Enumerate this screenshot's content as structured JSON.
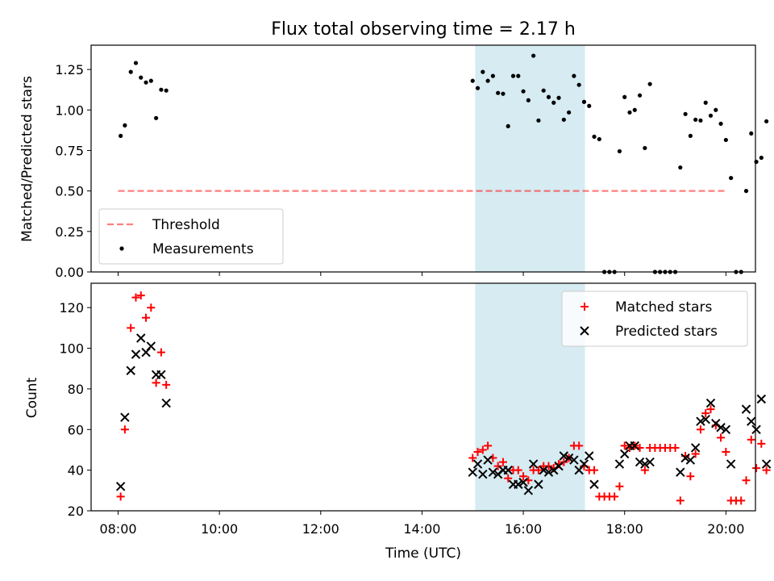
{
  "chart_data": [
    {
      "type": "scatter",
      "title": "Flux total observing time = 2.17 h",
      "xlabel": "",
      "ylabel": "Matched/Predicted stars",
      "xlim": [
        "07:28",
        "20:35"
      ],
      "ylim": [
        0,
        1.4
      ],
      "yticks": [
        "0.00",
        "0.25",
        "0.50",
        "0.75",
        "1.00",
        "1.25"
      ],
      "highlight_span": [
        "15:03",
        "17:13"
      ],
      "highlight_color": "#add8e6",
      "legend_position": "lower left",
      "threshold": {
        "name": "Threshold",
        "value": 0.5,
        "x_range": [
          "08:00",
          "20:00"
        ],
        "color": "#ff0000",
        "style": "dashed"
      },
      "series": [
        {
          "name": "Measurements",
          "color": "#000000",
          "marker": "dot",
          "points": [
            [
              "08:03",
              0.84
            ],
            [
              "08:08",
              0.905
            ],
            [
              "08:15",
              1.235
            ],
            [
              "08:21",
              1.29
            ],
            [
              "08:27",
              1.2
            ],
            [
              "08:33",
              1.17
            ],
            [
              "08:39",
              1.18
            ],
            [
              "08:45",
              0.95
            ],
            [
              "08:51",
              1.125
            ],
            [
              "08:57",
              1.12
            ],
            [
              "15:00",
              1.18
            ],
            [
              "15:06",
              1.135
            ],
            [
              "15:12",
              1.235
            ],
            [
              "15:18",
              1.18
            ],
            [
              "15:24",
              1.21
            ],
            [
              "15:30",
              1.105
            ],
            [
              "15:36",
              1.1
            ],
            [
              "15:42",
              0.9
            ],
            [
              "15:48",
              1.21
            ],
            [
              "15:54",
              1.21
            ],
            [
              "16:00",
              1.115
            ],
            [
              "16:06",
              1.06
            ],
            [
              "16:12",
              1.335
            ],
            [
              "16:18",
              0.935
            ],
            [
              "16:24",
              1.12
            ],
            [
              "16:30",
              1.08
            ],
            [
              "16:36",
              1.045
            ],
            [
              "16:42",
              1.075
            ],
            [
              "16:48",
              0.94
            ],
            [
              "16:54",
              0.985
            ],
            [
              "17:00",
              1.21
            ],
            [
              "17:06",
              1.155
            ],
            [
              "17:12",
              1.05
            ],
            [
              "17:18",
              1.025
            ],
            [
              "17:24",
              0.835
            ],
            [
              "17:30",
              0.82
            ],
            [
              "17:36",
              0.0
            ],
            [
              "17:42",
              0.0
            ],
            [
              "17:48",
              0.0
            ],
            [
              "17:54",
              0.745
            ],
            [
              "18:00",
              1.08
            ],
            [
              "18:06",
              0.985
            ],
            [
              "18:12",
              1.0
            ],
            [
              "18:18",
              1.09
            ],
            [
              "18:24",
              0.765
            ],
            [
              "18:30",
              1.16
            ],
            [
              "18:36",
              0.0
            ],
            [
              "18:42",
              0.0
            ],
            [
              "18:48",
              0.0
            ],
            [
              "18:54",
              0.0
            ],
            [
              "19:00",
              0.0
            ],
            [
              "19:06",
              0.645
            ],
            [
              "19:12",
              0.975
            ],
            [
              "19:18",
              0.84
            ],
            [
              "19:24",
              0.94
            ],
            [
              "19:30",
              0.935
            ],
            [
              "19:36",
              1.045
            ],
            [
              "19:42",
              0.965
            ],
            [
              "19:48",
              1.0
            ],
            [
              "19:54",
              0.915
            ],
            [
              "20:00",
              0.815
            ],
            [
              "20:06",
              0.58
            ],
            [
              "20:12",
              0.0
            ],
            [
              "20:18",
              0.0
            ],
            [
              "20:24",
              0.5
            ],
            [
              "20:30",
              0.855
            ],
            [
              "20:36",
              0.68
            ],
            [
              "20:42",
              0.705
            ],
            [
              "20:48",
              0.93
            ]
          ]
        }
      ]
    },
    {
      "type": "scatter",
      "title": "",
      "xlabel": "Time (UTC)",
      "ylabel": "Count",
      "xlim": [
        "07:28",
        "20:35"
      ],
      "ylim": [
        20,
        132
      ],
      "yticks": [
        "20",
        "40",
        "60",
        "80",
        "100",
        "120"
      ],
      "xticks": [
        "08:00",
        "10:00",
        "12:00",
        "14:00",
        "16:00",
        "18:00",
        "20:00"
      ],
      "highlight_span": [
        "15:03",
        "17:13"
      ],
      "highlight_color": "#add8e6",
      "legend_position": "upper right",
      "series": [
        {
          "name": "Matched stars",
          "color": "#ff0000",
          "marker": "plus",
          "points": [
            [
              "08:03",
              27
            ],
            [
              "08:08",
              60
            ],
            [
              "08:15",
              110
            ],
            [
              "08:21",
              125
            ],
            [
              "08:27",
              126
            ],
            [
              "08:33",
              115
            ],
            [
              "08:39",
              120
            ],
            [
              "08:45",
              83
            ],
            [
              "08:51",
              98
            ],
            [
              "08:57",
              82
            ],
            [
              "15:00",
              46
            ],
            [
              "15:06",
              49
            ],
            [
              "15:12",
              50
            ],
            [
              "15:18",
              52
            ],
            [
              "15:24",
              46
            ],
            [
              "15:30",
              42
            ],
            [
              "15:36",
              44
            ],
            [
              "15:42",
              36
            ],
            [
              "15:48",
              40
            ],
            [
              "15:54",
              40
            ],
            [
              "16:00",
              37
            ],
            [
              "16:06",
              35
            ],
            [
              "16:12",
              40
            ],
            [
              "16:18",
              40
            ],
            [
              "16:24",
              42
            ],
            [
              "16:30",
              42
            ],
            [
              "16:36",
              41
            ],
            [
              "16:42",
              43
            ],
            [
              "16:48",
              44
            ],
            [
              "16:54",
              46
            ],
            [
              "17:00",
              52
            ],
            [
              "17:06",
              52
            ],
            [
              "17:12",
              42
            ],
            [
              "17:18",
              40
            ],
            [
              "17:24",
              40
            ],
            [
              "17:30",
              27
            ],
            [
              "17:36",
              27
            ],
            [
              "17:42",
              27
            ],
            [
              "17:48",
              27
            ],
            [
              "17:54",
              32
            ],
            [
              "18:00",
              52
            ],
            [
              "18:06",
              51
            ],
            [
              "18:12",
              52
            ],
            [
              "18:18",
              51
            ],
            [
              "18:24",
              40
            ],
            [
              "18:30",
              51
            ],
            [
              "18:36",
              51
            ],
            [
              "18:42",
              51
            ],
            [
              "18:48",
              51
            ],
            [
              "18:54",
              51
            ],
            [
              "19:00",
              51
            ],
            [
              "19:06",
              25
            ],
            [
              "19:12",
              47
            ],
            [
              "19:18",
              37
            ],
            [
              "19:24",
              48
            ],
            [
              "19:30",
              60
            ],
            [
              "19:36",
              68
            ],
            [
              "19:42",
              70
            ],
            [
              "19:48",
              62
            ],
            [
              "19:54",
              56
            ],
            [
              "20:00",
              49
            ],
            [
              "20:06",
              25
            ],
            [
              "20:12",
              25
            ],
            [
              "20:18",
              25
            ],
            [
              "20:24",
              35
            ],
            [
              "20:30",
              55
            ],
            [
              "20:36",
              41
            ],
            [
              "20:42",
              53
            ],
            [
              "20:48",
              40
            ]
          ]
        },
        {
          "name": "Predicted stars",
          "color": "#000000",
          "marker": "x",
          "points": [
            [
              "08:03",
              32
            ],
            [
              "08:08",
              66
            ],
            [
              "08:15",
              89
            ],
            [
              "08:21",
              97
            ],
            [
              "08:27",
              105
            ],
            [
              "08:33",
              98
            ],
            [
              "08:39",
              101
            ],
            [
              "08:45",
              87
            ],
            [
              "08:51",
              87
            ],
            [
              "08:57",
              73
            ],
            [
              "15:00",
              39
            ],
            [
              "15:06",
              43
            ],
            [
              "15:12",
              38
            ],
            [
              "15:18",
              45
            ],
            [
              "15:24",
              39
            ],
            [
              "15:30",
              38
            ],
            [
              "15:36",
              40
            ],
            [
              "15:42",
              40
            ],
            [
              "15:48",
              33
            ],
            [
              "15:54",
              33
            ],
            [
              "16:00",
              34
            ],
            [
              "16:06",
              30
            ],
            [
              "16:12",
              43
            ],
            [
              "16:18",
              33
            ],
            [
              "16:24",
              40
            ],
            [
              "16:30",
              39
            ],
            [
              "16:36",
              40
            ],
            [
              "16:42",
              42
            ],
            [
              "16:48",
              47
            ],
            [
              "16:54",
              46
            ],
            [
              "17:00",
              45
            ],
            [
              "17:06",
              40
            ],
            [
              "17:12",
              43
            ],
            [
              "17:18",
              47
            ],
            [
              "17:24",
              33
            ],
            [
              "17:54",
              43
            ],
            [
              "18:00",
              48
            ],
            [
              "18:06",
              52
            ],
            [
              "18:12",
              52
            ],
            [
              "18:18",
              44
            ],
            [
              "18:24",
              43
            ],
            [
              "18:30",
              44
            ],
            [
              "19:06",
              39
            ],
            [
              "19:12",
              46
            ],
            [
              "19:18",
              45
            ],
            [
              "19:24",
              51
            ],
            [
              "19:30",
              64
            ],
            [
              "19:36",
              65
            ],
            [
              "19:42",
              73
            ],
            [
              "19:48",
              63
            ],
            [
              "19:54",
              61
            ],
            [
              "20:00",
              60
            ],
            [
              "20:06",
              43
            ],
            [
              "20:24",
              70
            ],
            [
              "20:30",
              64
            ],
            [
              "20:36",
              60
            ],
            [
              "20:42",
              75
            ],
            [
              "20:48",
              43
            ]
          ]
        }
      ]
    }
  ]
}
